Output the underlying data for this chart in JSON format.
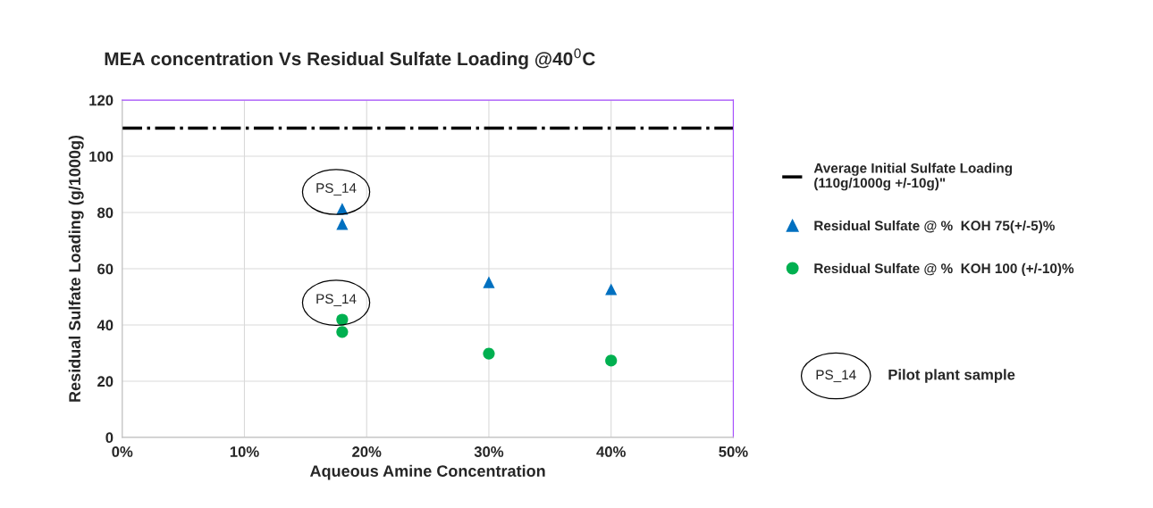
{
  "chart_data": {
    "type": "scatter",
    "title": "MEA concentration Vs Residual Sulfate Loading @40$^{0}$C",
    "xlabel": "Aqueous Amine Concentration",
    "ylabel": "Residual Sulfate Loading (g/1000g)",
    "series": [
      {
        "name": "Residual Sulfate @ %  KOH 75(+/-5)%",
        "color": "#0070c0",
        "marker": "triangle",
        "x": [
          18,
          18,
          30,
          40
        ],
        "values": [
          81.3,
          75.9,
          55.2,
          52.7
        ]
      },
      {
        "name": "Residual Sulfate @ %  KOH 100 (+/-10)%",
        "color": "#00b050",
        "marker": "circle",
        "x": [
          18,
          18,
          30,
          40
        ],
        "values": [
          41.9,
          37.5,
          29.8,
          27.3
        ]
      }
    ],
    "ref_lines": [
      {
        "axis": "y",
        "value": 110,
        "label": "Average Initial Sulfate Loading\n(110g/1000g +/-10g)\"",
        "color": "#000000",
        "line_style": "dashdot"
      }
    ],
    "annotations": [
      {
        "text": "PS_14",
        "x": 18,
        "y": 81.3
      },
      {
        "text": "PS_14",
        "x": 18,
        "y": 41.9
      },
      "PS_14",
      "Pilot plant sample"
    ],
    "xlim": [
      0,
      50
    ],
    "ylim": [
      0,
      120
    ],
    "xticks": [
      {
        "value": 0,
        "label": "0%"
      },
      {
        "value": 10,
        "label": "10%"
      },
      {
        "value": 20,
        "label": "20%"
      },
      {
        "value": 30,
        "label": "30%"
      },
      {
        "value": 40,
        "label": "40%"
      },
      {
        "value": 50,
        "label": "50%"
      }
    ],
    "yticks": [
      0,
      20,
      40,
      60,
      80,
      100,
      120
    ],
    "grid": true,
    "legend": "right"
  }
}
